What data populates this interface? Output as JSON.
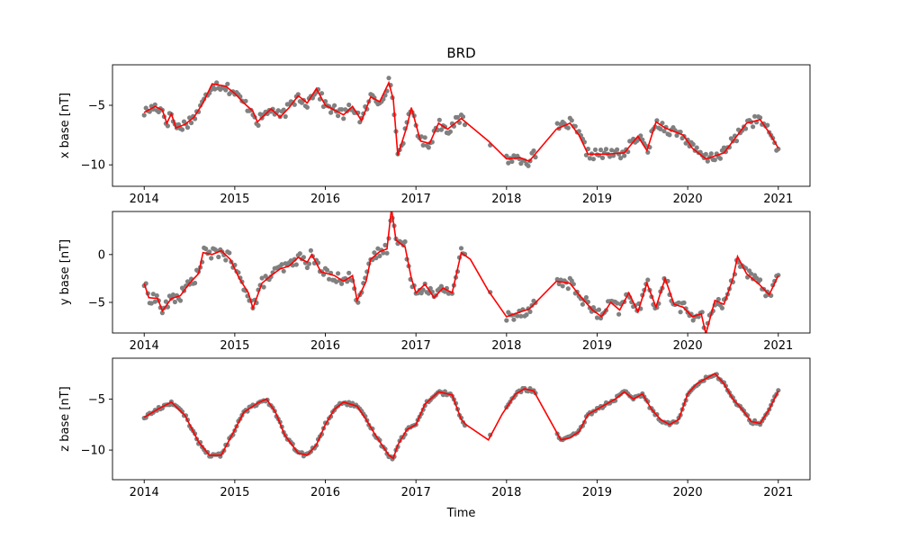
{
  "chart_data": {
    "type": "scatter",
    "title": "BRD",
    "xlabel": "Time",
    "x_ticks": [
      "2014",
      "2015",
      "2016",
      "2017",
      "2018",
      "2019",
      "2020",
      "2021"
    ],
    "xlim": [
      2013.65,
      2021.35
    ],
    "colors": {
      "points": "#808080",
      "line": "#ff0000"
    },
    "panels": [
      {
        "ylabel": "x base [nT]",
        "ylim": [
          -11.8,
          -1.6
        ],
        "yticks": [
          -10,
          -5
        ],
        "anchors": [
          [
            2014.0,
            -5.6
          ],
          [
            2014.12,
            -5.1
          ],
          [
            2014.2,
            -5.4
          ],
          [
            2014.25,
            -6.5
          ],
          [
            2014.3,
            -5.7
          ],
          [
            2014.35,
            -6.9
          ],
          [
            2014.45,
            -6.6
          ],
          [
            2014.55,
            -6.0
          ],
          [
            2014.65,
            -4.8
          ],
          [
            2014.75,
            -3.2
          ],
          [
            2014.9,
            -3.4
          ],
          [
            2015.0,
            -4.0
          ],
          [
            2015.1,
            -4.8
          ],
          [
            2015.2,
            -5.5
          ],
          [
            2015.25,
            -6.4
          ],
          [
            2015.4,
            -5.3
          ],
          [
            2015.5,
            -6.0
          ],
          [
            2015.6,
            -5.2
          ],
          [
            2015.7,
            -4.2
          ],
          [
            2015.8,
            -4.8
          ],
          [
            2015.9,
            -3.6
          ],
          [
            2016.0,
            -5.0
          ],
          [
            2016.1,
            -5.4
          ],
          [
            2016.2,
            -5.8
          ],
          [
            2016.3,
            -5.1
          ],
          [
            2016.4,
            -6.3
          ],
          [
            2016.5,
            -4.3
          ],
          [
            2016.6,
            -4.7
          ],
          [
            2016.7,
            -3.1
          ],
          [
            2016.75,
            -4.5
          ],
          [
            2016.8,
            -9.2
          ],
          [
            2016.9,
            -6.8
          ],
          [
            2016.95,
            -5.2
          ],
          [
            2017.05,
            -8.0
          ],
          [
            2017.15,
            -8.2
          ],
          [
            2017.25,
            -6.5
          ],
          [
            2017.35,
            -7.0
          ],
          [
            2017.5,
            -6.1
          ],
          [
            2017.8,
            -8.0
          ],
          [
            2018.0,
            -9.5
          ],
          [
            2018.15,
            -9.4
          ],
          [
            2018.25,
            -9.7
          ],
          [
            2018.55,
            -7.0
          ],
          [
            2018.7,
            -6.5
          ],
          [
            2018.8,
            -7.5
          ],
          [
            2018.9,
            -9.1
          ],
          [
            2019.1,
            -9.1
          ],
          [
            2019.3,
            -9.0
          ],
          [
            2019.45,
            -7.6
          ],
          [
            2019.55,
            -8.8
          ],
          [
            2019.65,
            -6.4
          ],
          [
            2019.75,
            -6.9
          ],
          [
            2019.85,
            -7.2
          ],
          [
            2019.95,
            -7.5
          ],
          [
            2020.05,
            -8.6
          ],
          [
            2020.2,
            -9.5
          ],
          [
            2020.4,
            -9.0
          ],
          [
            2020.55,
            -7.5
          ],
          [
            2020.65,
            -6.5
          ],
          [
            2020.8,
            -6.2
          ],
          [
            2020.9,
            -7.3
          ],
          [
            2021.0,
            -8.6
          ]
        ]
      },
      {
        "ylabel": "y base [nT]",
        "ylim": [
          -8.2,
          4.5
        ],
        "yticks": [
          -5,
          0
        ],
        "anchors": [
          [
            2014.0,
            -3.0
          ],
          [
            2014.05,
            -4.5
          ],
          [
            2014.15,
            -4.6
          ],
          [
            2014.2,
            -5.9
          ],
          [
            2014.3,
            -4.6
          ],
          [
            2014.4,
            -4.3
          ],
          [
            2014.5,
            -3.0
          ],
          [
            2014.6,
            -2.0
          ],
          [
            2014.65,
            0.2
          ],
          [
            2014.75,
            0.0
          ],
          [
            2014.85,
            0.4
          ],
          [
            2014.95,
            -0.5
          ],
          [
            2015.05,
            -2.5
          ],
          [
            2015.15,
            -4.0
          ],
          [
            2015.2,
            -5.6
          ],
          [
            2015.3,
            -3.0
          ],
          [
            2015.4,
            -2.2
          ],
          [
            2015.5,
            -1.5
          ],
          [
            2015.6,
            -1.2
          ],
          [
            2015.7,
            -0.3
          ],
          [
            2015.8,
            -0.8
          ],
          [
            2015.85,
            0.0
          ],
          [
            2015.95,
            -1.8
          ],
          [
            2016.1,
            -2.2
          ],
          [
            2016.2,
            -2.8
          ],
          [
            2016.3,
            -2.2
          ],
          [
            2016.35,
            -4.8
          ],
          [
            2016.45,
            -2.8
          ],
          [
            2016.5,
            -0.5
          ],
          [
            2016.6,
            0.3
          ],
          [
            2016.68,
            0.6
          ],
          [
            2016.73,
            4.8
          ],
          [
            2016.78,
            1.5
          ],
          [
            2016.88,
            0.8
          ],
          [
            2016.95,
            -2.5
          ],
          [
            2017.0,
            -4.0
          ],
          [
            2017.1,
            -3.1
          ],
          [
            2017.2,
            -4.5
          ],
          [
            2017.3,
            -3.5
          ],
          [
            2017.4,
            -4.0
          ],
          [
            2017.5,
            0.2
          ],
          [
            2017.6,
            -0.5
          ],
          [
            2017.8,
            -3.8
          ],
          [
            2018.0,
            -6.5
          ],
          [
            2018.15,
            -6.0
          ],
          [
            2018.25,
            -5.7
          ],
          [
            2018.55,
            -2.8
          ],
          [
            2018.7,
            -3.0
          ],
          [
            2018.8,
            -4.2
          ],
          [
            2018.95,
            -5.8
          ],
          [
            2019.05,
            -6.5
          ],
          [
            2019.15,
            -5.0
          ],
          [
            2019.25,
            -5.8
          ],
          [
            2019.35,
            -4.0
          ],
          [
            2019.45,
            -6.0
          ],
          [
            2019.55,
            -3.0
          ],
          [
            2019.65,
            -5.5
          ],
          [
            2019.75,
            -2.5
          ],
          [
            2019.85,
            -5.2
          ],
          [
            2019.95,
            -5.5
          ],
          [
            2020.05,
            -6.5
          ],
          [
            2020.15,
            -6.2
          ],
          [
            2020.2,
            -8.3
          ],
          [
            2020.3,
            -4.8
          ],
          [
            2020.4,
            -5.2
          ],
          [
            2020.5,
            -2.5
          ],
          [
            2020.55,
            -0.2
          ],
          [
            2020.65,
            -2.0
          ],
          [
            2020.8,
            -3.2
          ],
          [
            2020.9,
            -4.2
          ],
          [
            2021.0,
            -2.2
          ]
        ]
      },
      {
        "ylabel": "z base [nT]",
        "ylim": [
          -12.9,
          -1.0
        ],
        "yticks": [
          -10,
          -5
        ],
        "anchors": [
          [
            2014.0,
            -6.8
          ],
          [
            2014.15,
            -6.0
          ],
          [
            2014.3,
            -5.3
          ],
          [
            2014.45,
            -6.6
          ],
          [
            2014.6,
            -9.2
          ],
          [
            2014.72,
            -10.5
          ],
          [
            2014.85,
            -10.5
          ],
          [
            2015.0,
            -8.0
          ],
          [
            2015.1,
            -6.3
          ],
          [
            2015.25,
            -5.4
          ],
          [
            2015.35,
            -5.0
          ],
          [
            2015.45,
            -6.3
          ],
          [
            2015.55,
            -8.5
          ],
          [
            2015.7,
            -10.3
          ],
          [
            2015.8,
            -10.5
          ],
          [
            2015.9,
            -9.5
          ],
          [
            2016.0,
            -7.5
          ],
          [
            2016.1,
            -6.0
          ],
          [
            2016.2,
            -5.3
          ],
          [
            2016.35,
            -5.7
          ],
          [
            2016.45,
            -7.0
          ],
          [
            2016.55,
            -8.5
          ],
          [
            2016.7,
            -10.5
          ],
          [
            2016.75,
            -10.8
          ],
          [
            2016.8,
            -9.5
          ],
          [
            2016.9,
            -8.0
          ],
          [
            2017.0,
            -7.5
          ],
          [
            2017.1,
            -5.5
          ],
          [
            2017.25,
            -4.3
          ],
          [
            2017.4,
            -4.6
          ],
          [
            2017.5,
            -7.0
          ],
          [
            2017.55,
            -7.5
          ],
          [
            2017.8,
            -9.0
          ],
          [
            2017.95,
            -6.5
          ],
          [
            2018.1,
            -4.5
          ],
          [
            2018.2,
            -4.0
          ],
          [
            2018.3,
            -4.2
          ],
          [
            2018.6,
            -9.0
          ],
          [
            2018.7,
            -8.8
          ],
          [
            2018.8,
            -8.2
          ],
          [
            2018.9,
            -6.5
          ],
          [
            2019.0,
            -6.0
          ],
          [
            2019.1,
            -5.5
          ],
          [
            2019.2,
            -5.0
          ],
          [
            2019.3,
            -4.3
          ],
          [
            2019.4,
            -5.0
          ],
          [
            2019.5,
            -4.5
          ],
          [
            2019.6,
            -6.0
          ],
          [
            2019.7,
            -7.0
          ],
          [
            2019.8,
            -7.5
          ],
          [
            2019.9,
            -7.0
          ],
          [
            2020.0,
            -4.5
          ],
          [
            2020.1,
            -3.5
          ],
          [
            2020.2,
            -3.0
          ],
          [
            2020.3,
            -2.5
          ],
          [
            2020.4,
            -3.5
          ],
          [
            2020.5,
            -5.0
          ],
          [
            2020.6,
            -6.0
          ],
          [
            2020.7,
            -7.2
          ],
          [
            2020.8,
            -7.4
          ],
          [
            2020.9,
            -6.0
          ],
          [
            2021.0,
            -4.2
          ]
        ]
      }
    ]
  }
}
